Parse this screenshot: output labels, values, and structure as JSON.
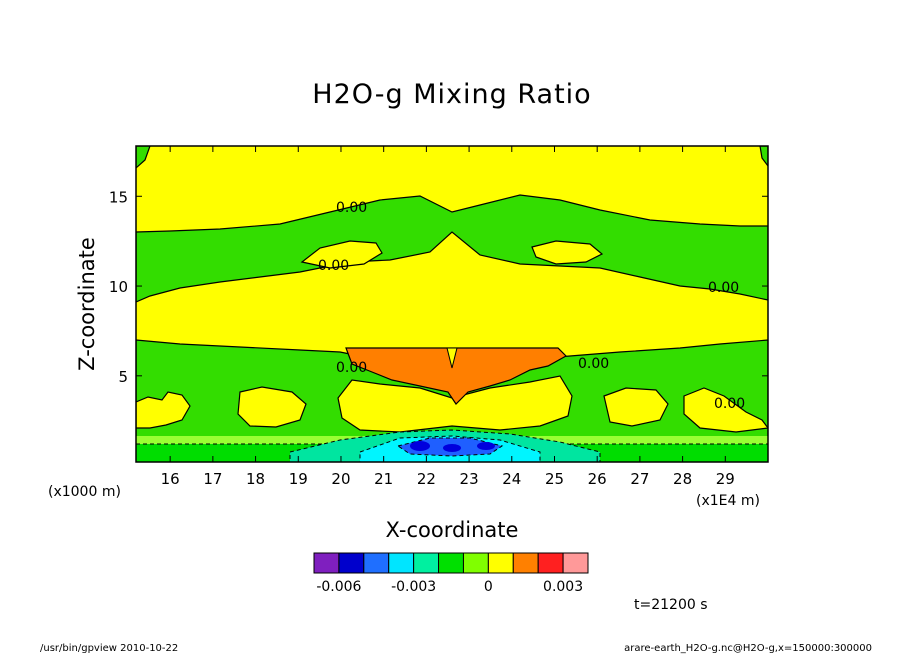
{
  "chart_data": {
    "type": "heatmap",
    "title": "H2O-g Mixing Ratio",
    "xlabel": "X-coordinate",
    "ylabel": "Z-coordinate",
    "x_scale_note": "(x1E4 m)",
    "y_scale_note": "(x1000 m)",
    "xlim": [
      15.2,
      30.0
    ],
    "ylim": [
      0.2,
      17.8
    ],
    "x_ticks": [
      16,
      17,
      18,
      19,
      20,
      21,
      22,
      23,
      24,
      25,
      26,
      27,
      28,
      29
    ],
    "y_ticks": [
      5,
      10,
      15
    ],
    "contour_labels": [
      "0.00",
      "0.00",
      "0.00",
      "0.00",
      "0.00",
      "0.00"
    ],
    "colorbar": {
      "colors": [
        "#7f1fbf",
        "#0000cc",
        "#1f6fff",
        "#00e5ff",
        "#00f0a0",
        "#00e000",
        "#80ff00",
        "#ffff00",
        "#ff8000",
        "#ff2020",
        "#ff9999"
      ],
      "tick_labels": [
        "-0.006",
        "-0.003",
        "0",
        "0.003"
      ]
    },
    "palette": {
      "green": "#33dd00",
      "yellow": "#ffff00",
      "yellowgreen": "#99ff33",
      "orange": "#ff7f00",
      "cyan": "#00f5ff",
      "teal": "#00e5a0",
      "blue": "#1f5fff",
      "darkblue": "#0000dd"
    }
  },
  "annotations": {
    "time": "t=21200 s",
    "footer_left": "/usr/bin/gpview  2010-10-22",
    "footer_right": "arare-earth_H2O-g.nc@H2O-g,x=150000:300000"
  }
}
